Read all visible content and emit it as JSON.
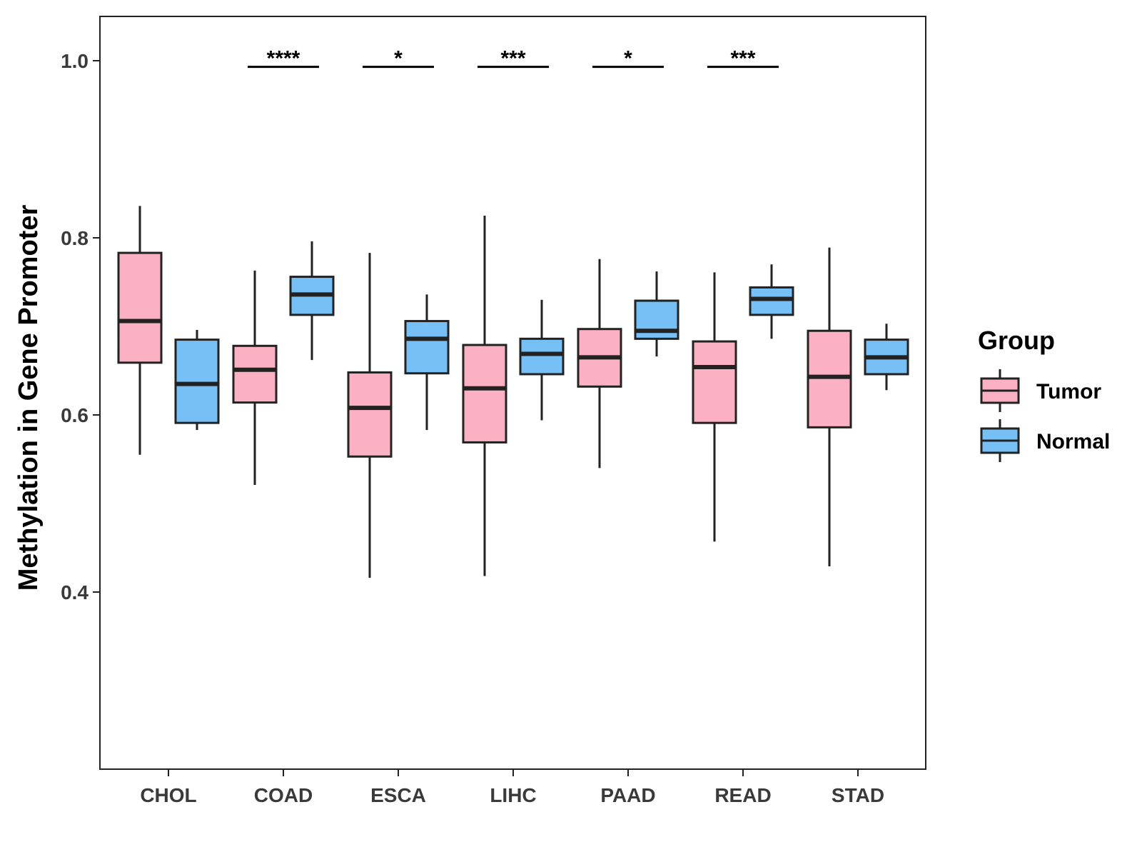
{
  "chart_data": {
    "type": "boxplot",
    "title": "",
    "xlabel": "",
    "ylabel": "Methylation in Gene Promoter",
    "ylim": [
      0.2,
      1.05
    ],
    "yticks": [
      0.4,
      0.6,
      0.8,
      1.0
    ],
    "ytick_labels": [
      "0.4",
      "0.6",
      "0.8",
      "1.0"
    ],
    "categories": [
      "CHOL",
      "COAD",
      "ESCA",
      "LIHC",
      "PAAD",
      "READ",
      "STAD"
    ],
    "grid": false,
    "legend": {
      "title": "Group",
      "position": "right",
      "entries": [
        {
          "name": "Tumor",
          "color": "#fbb1c3"
        },
        {
          "name": "Normal",
          "color": "#77c0f6"
        }
      ]
    },
    "series": [
      {
        "name": "Tumor",
        "color": "#fbb1c3",
        "boxes": [
          {
            "category": "CHOL",
            "min": 0.555,
            "q1": 0.659,
            "median": 0.706,
            "q3": 0.783,
            "max": 0.836
          },
          {
            "category": "COAD",
            "min": 0.521,
            "q1": 0.614,
            "median": 0.651,
            "q3": 0.678,
            "max": 0.763
          },
          {
            "category": "ESCA",
            "min": 0.416,
            "q1": 0.553,
            "median": 0.608,
            "q3": 0.648,
            "max": 0.783
          },
          {
            "category": "LIHC",
            "min": 0.418,
            "q1": 0.569,
            "median": 0.63,
            "q3": 0.679,
            "max": 0.825
          },
          {
            "category": "PAAD",
            "min": 0.54,
            "q1": 0.632,
            "median": 0.665,
            "q3": 0.697,
            "max": 0.776
          },
          {
            "category": "READ",
            "min": 0.457,
            "q1": 0.591,
            "median": 0.654,
            "q3": 0.683,
            "max": 0.761
          },
          {
            "category": "STAD",
            "min": 0.429,
            "q1": 0.586,
            "median": 0.643,
            "q3": 0.695,
            "max": 0.789
          }
        ]
      },
      {
        "name": "Normal",
        "color": "#77c0f6",
        "boxes": [
          {
            "category": "CHOL",
            "min": 0.583,
            "q1": 0.591,
            "median": 0.635,
            "q3": 0.685,
            "max": 0.696
          },
          {
            "category": "COAD",
            "min": 0.662,
            "q1": 0.713,
            "median": 0.736,
            "q3": 0.756,
            "max": 0.796
          },
          {
            "category": "ESCA",
            "min": 0.583,
            "q1": 0.647,
            "median": 0.686,
            "q3": 0.706,
            "max": 0.736
          },
          {
            "category": "LIHC",
            "min": 0.594,
            "q1": 0.646,
            "median": 0.669,
            "q3": 0.686,
            "max": 0.73
          },
          {
            "category": "PAAD",
            "min": 0.666,
            "q1": 0.686,
            "median": 0.695,
            "q3": 0.729,
            "max": 0.762
          },
          {
            "category": "READ",
            "min": 0.686,
            "q1": 0.713,
            "median": 0.731,
            "q3": 0.744,
            "max": 0.77
          },
          {
            "category": "STAD",
            "min": 0.628,
            "q1": 0.646,
            "median": 0.665,
            "q3": 0.685,
            "max": 0.703
          }
        ]
      }
    ],
    "significance": [
      {
        "category": "COAD",
        "label": "****",
        "y": 0.993
      },
      {
        "category": "ESCA",
        "label": "*",
        "y": 0.993
      },
      {
        "category": "LIHC",
        "label": "***",
        "y": 0.993
      },
      {
        "category": "PAAD",
        "label": "*",
        "y": 0.993
      },
      {
        "category": "READ",
        "label": "***",
        "y": 0.993
      }
    ]
  }
}
